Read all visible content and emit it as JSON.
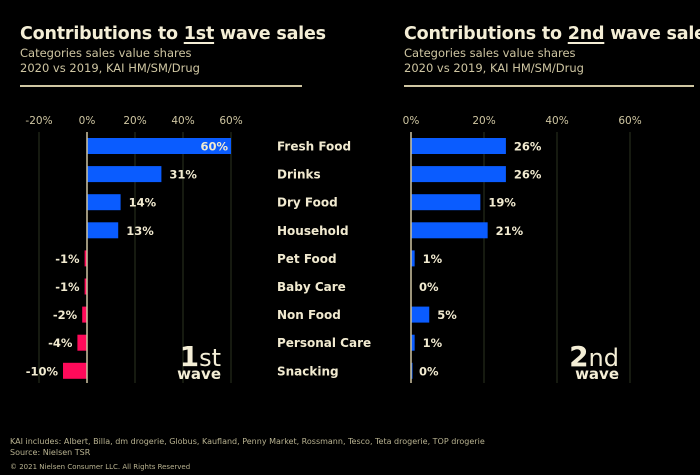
{
  "chart_data": [
    {
      "type": "bar",
      "orientation": "horizontal",
      "title_pre": "Contributions to ",
      "title_ordinal": "1st",
      "title_post": " wave sales",
      "subtitle": [
        "Categories sales value shares",
        "2020 vs 2019, KAI HM/SM/Drug"
      ],
      "xlim": [
        -20,
        60
      ],
      "ticks": [
        -20,
        0,
        20,
        40,
        60
      ],
      "tick_labels": [
        "-20%",
        "0%",
        "20%",
        "40%",
        "60%"
      ],
      "categories": [
        "Fresh Food",
        "Drinks",
        "Dry Food",
        "Household",
        "Pet Food",
        "Baby Care",
        "Non Food",
        "Personal Care",
        "Snacking"
      ],
      "values": [
        60,
        31,
        14,
        13,
        -1,
        -1,
        -2,
        -4,
        -10
      ],
      "data_labels": [
        "60%",
        "31%",
        "14%",
        "13%",
        "-1%",
        "-1%",
        "-2%",
        "-4%",
        "-10%"
      ],
      "watermark": {
        "big": "1",
        "sup": "st",
        "small": "wave"
      },
      "grid": true
    },
    {
      "type": "bar",
      "orientation": "horizontal",
      "title_pre": "Contributions to ",
      "title_ordinal": "2nd",
      "title_post": " wave sales",
      "subtitle": [
        "Categories sales value shares",
        "2020 vs 2019, KAI HM/SM/Drug"
      ],
      "xlim": [
        0,
        60
      ],
      "ticks": [
        0,
        20,
        40,
        60
      ],
      "tick_labels": [
        "0%",
        "20%",
        "40%",
        "60%"
      ],
      "categories": [
        "Fresh Food",
        "Drinks",
        "Dry Food",
        "Household",
        "Pet Food",
        "Baby Care",
        "Non Food",
        "Personal Care",
        "Snacking"
      ],
      "values": [
        26,
        26,
        19,
        21,
        1,
        0,
        5,
        1,
        0
      ],
      "data_labels": [
        "26%",
        "26%",
        "19%",
        "21%",
        "1%",
        "0%",
        "5%",
        "1%",
        "0%"
      ],
      "watermark": {
        "big": "2",
        "sup": "nd",
        "small": "wave"
      },
      "grid": true
    }
  ],
  "colors": {
    "positive": "#0a5cff",
    "negative": "#ff0a5a",
    "text": "#f1ead0",
    "grid": "#2c3320",
    "axis": "#cfc6a2"
  },
  "footer": {
    "kai": "KAI includes: Albert, Billa, dm drogerie, Globus, Kaufland, Penny Market, Rossmann, Tesco, Teta drogerie, TOP drogerie",
    "source": "Source: Nielsen TSR",
    "copyright": "© 2021 Nielsen Consumer LLC. All Rights Reserved"
  }
}
